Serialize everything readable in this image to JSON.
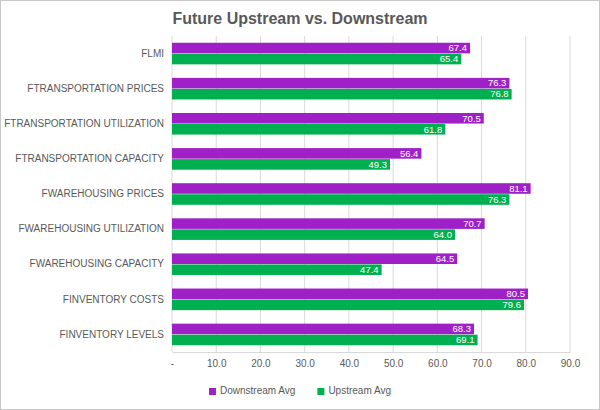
{
  "chart_data": {
    "type": "bar",
    "title": "Future Upstream vs. Downstream",
    "orientation": "horizontal",
    "categories": [
      "FLMI",
      "FTRANSPORTATION PRICES",
      "FTRANSPORTATION UTILIZATION",
      "FTRANSPORTATION CAPACITY",
      "FWAREHOUSING PRICES",
      "FWAREHOUSING UTILIZATION",
      "FWAREHOUSING CAPACITY",
      "FINVENTORY COSTS",
      "FINVENTORY LEVELS"
    ],
    "series": [
      {
        "name": "Downstream Avg",
        "color": "#a020c8",
        "values": [
          67.4,
          76.3,
          70.5,
          56.4,
          81.1,
          70.7,
          64.5,
          80.5,
          68.3
        ]
      },
      {
        "name": "Upstream Avg",
        "color": "#00b050",
        "values": [
          65.4,
          76.8,
          61.8,
          49.3,
          76.3,
          64.0,
          47.4,
          79.6,
          69.1
        ],
        "value_labels": [
          "65.4",
          "76.8",
          "61.8",
          "49.3",
          "76.3",
          "64.0",
          "47.4",
          "79.6",
          "69.1"
        ]
      }
    ],
    "xlim": [
      0,
      90
    ],
    "xticks": [
      {
        "value": 0,
        "label": "-"
      },
      {
        "value": 10,
        "label": "10.0"
      },
      {
        "value": 20,
        "label": "20.0"
      },
      {
        "value": 30,
        "label": "30.0"
      },
      {
        "value": 40,
        "label": "40.0"
      },
      {
        "value": 50,
        "label": "50.0"
      },
      {
        "value": 60,
        "label": "60.0"
      },
      {
        "value": 70,
        "label": "70.0"
      },
      {
        "value": 80,
        "label": "80.0"
      },
      {
        "value": 90,
        "label": "90.0"
      }
    ],
    "grid": true,
    "data_labels": true,
    "legend": "bottom"
  }
}
